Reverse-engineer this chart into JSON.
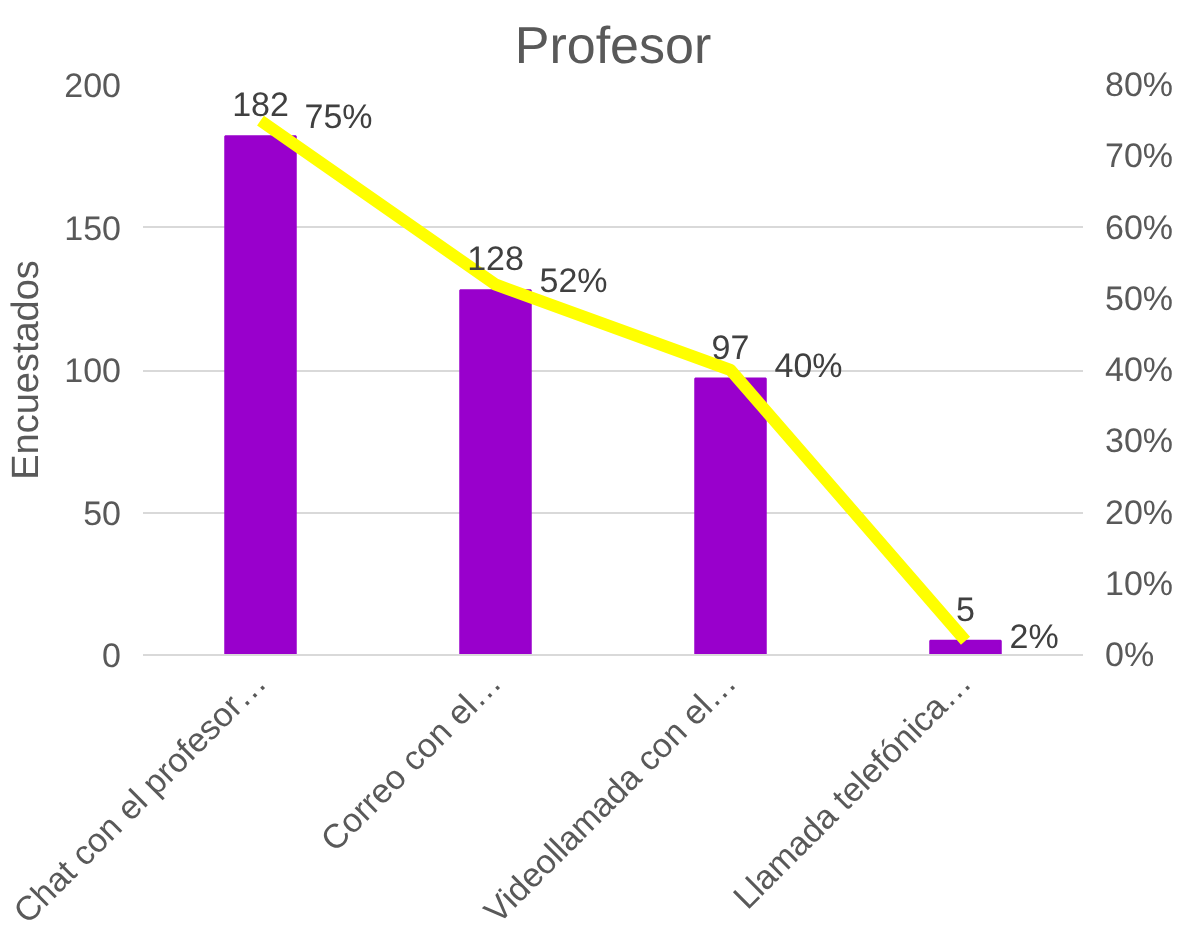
{
  "chart_data": {
    "type": "bar",
    "title": "Profesor",
    "ylabel": "Encuestados",
    "categories": [
      "Chat con el profesor…",
      "Correo con el…",
      "Videollamada con el…",
      "Llamada telefónica…"
    ],
    "series": [
      {
        "color": "#9900cc",
        "values": [
          182,
          128,
          97,
          5
        ],
        "value_labels": [
          "182",
          "128",
          "97",
          "5"
        ]
      },
      {
        "type": "line",
        "axis": "y2",
        "color": "#ffff00",
        "values": [
          75,
          52,
          40,
          2
        ],
        "value_labels": [
          "75%",
          "52%",
          "40%",
          "2%"
        ]
      }
    ],
    "ylim": [
      0,
      200
    ],
    "yticks": [
      0,
      50,
      100,
      150,
      200
    ],
    "y2lim": [
      0,
      80
    ],
    "y2ticks": [
      {
        "value": 0,
        "label": "0%"
      },
      {
        "value": 10,
        "label": "10%"
      },
      {
        "value": 20,
        "label": "20%"
      },
      {
        "value": 30,
        "label": "30%"
      },
      {
        "value": 40,
        "label": "40%"
      },
      {
        "value": 50,
        "label": "50%"
      },
      {
        "value": 60,
        "label": "60%"
      },
      {
        "value": 70,
        "label": "70%"
      },
      {
        "value": 80,
        "label": "80%"
      }
    ],
    "grid": "y"
  }
}
